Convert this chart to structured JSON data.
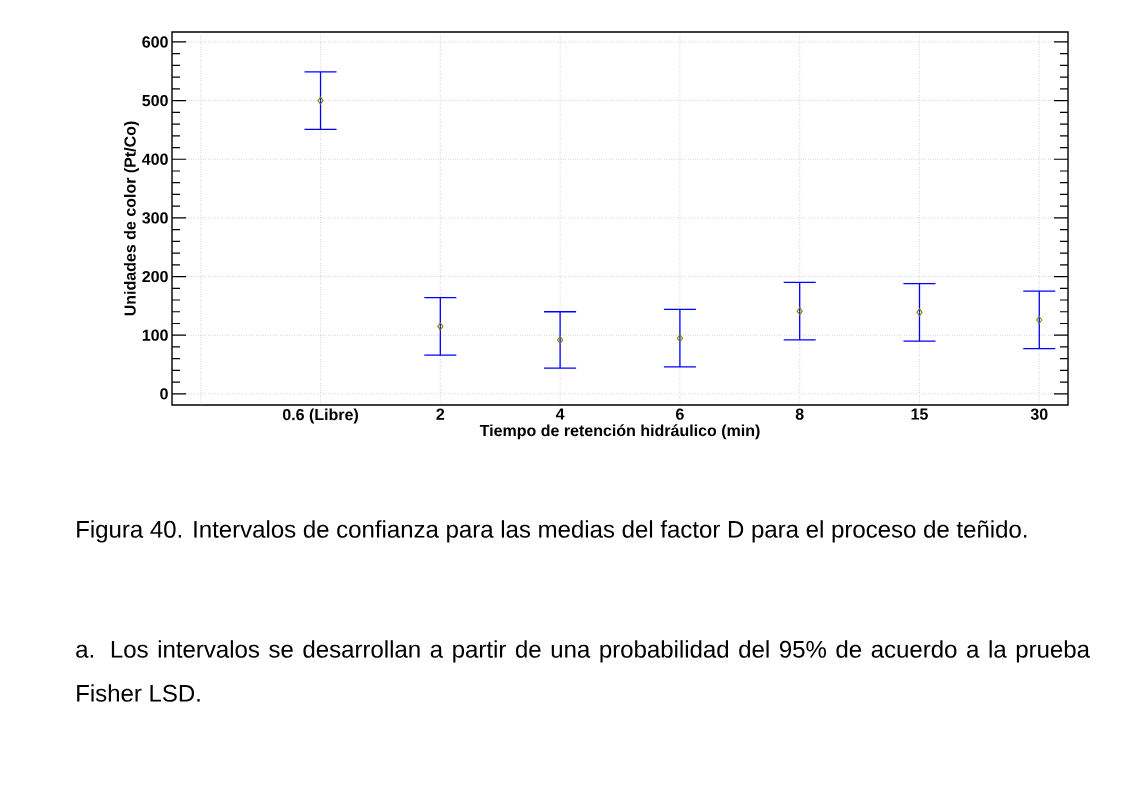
{
  "chart_data": {
    "type": "scatter",
    "xlabel": "Tiempo de retención hidráulico (min)",
    "ylabel": "Unidades de color (Pt/Co)",
    "categories": [
      "0.6 (Libre)",
      "2",
      "4",
      "6",
      "8",
      "15",
      "30"
    ],
    "values": [
      500,
      115,
      92,
      95,
      141,
      139,
      126
    ],
    "errors": [
      49,
      49,
      48,
      49,
      49,
      49,
      49
    ],
    "color": "#808000",
    "marker": "diamond",
    "grid": true,
    "ylim": [
      -19,
      617
    ],
    "yticks": [
      0,
      100,
      200,
      300,
      400,
      500,
      600
    ],
    "annotations": [
      "Figura 40. Intervalos de confianza para las medias del factor D para el proceso de teñido.",
      "a. Los intervalos se desarrollan a partir de una probabilidad del 95% de acuerdo a la prueba Fisher LSD."
    ]
  }
}
